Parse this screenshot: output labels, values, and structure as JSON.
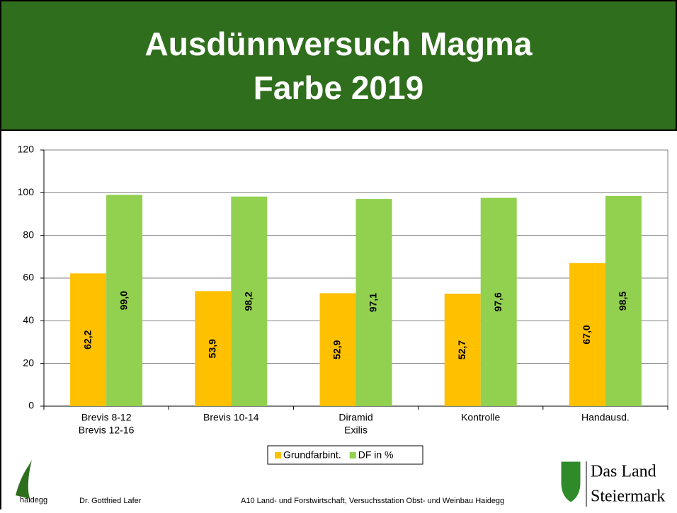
{
  "chart_data": {
    "type": "bar",
    "title": "Ausdünnversuch Magma",
    "subtitle": "Farbe 2019",
    "categories": [
      [
        "Brevis 8-12",
        "Brevis 12-16"
      ],
      [
        "Brevis 10-14"
      ],
      [
        "Diramid",
        "Exilis"
      ],
      [
        "Kontrolle"
      ],
      [
        "Handausd."
      ]
    ],
    "series": [
      {
        "name": "Grundfarbint.",
        "color": "#ffc000",
        "values": [
          62.2,
          53.9,
          52.9,
          52.7,
          67.0
        ],
        "value_labels": [
          "62,2",
          "53,9",
          "52,9",
          "52,7",
          "67,0"
        ]
      },
      {
        "name": "DF in %",
        "color": "#92d050",
        "values": [
          99.0,
          98.2,
          97.1,
          97.6,
          98.5
        ],
        "value_labels": [
          "99,0",
          "98,2",
          "97,1",
          "97,6",
          "98,5"
        ]
      }
    ],
    "ylim": [
      0,
      120
    ],
    "yticks": [
      0,
      20,
      40,
      60,
      80,
      100,
      120
    ],
    "grid": true,
    "legend": "bottom"
  },
  "footer": {
    "logo_text": "haidegg",
    "author": "Dr. Gottfried Lafer",
    "institution": "A10 Land- und Forstwirtschaft, Versuchsstation Obst- und Weinbau Haidegg",
    "brand": [
      "Das Land",
      "Steiermark"
    ]
  }
}
